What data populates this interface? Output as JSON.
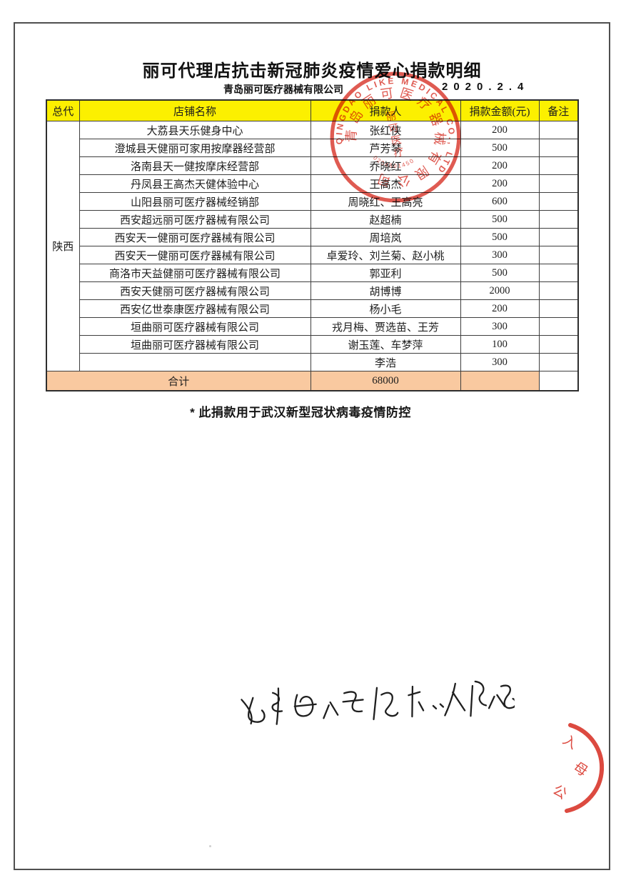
{
  "document": {
    "title": "丽可代理店抗击新冠肺炎疫情爱心捐款明细",
    "company": "青岛丽可医疗器械有限公司",
    "date": "2020.2.4",
    "footnote": "* 此捐款用于武汉新型冠状病毒疫情防控"
  },
  "table": {
    "columns": [
      "总代",
      "店铺名称",
      "捐款人",
      "捐款金额(元)",
      "备注"
    ],
    "region": "陕西",
    "rows": [
      {
        "store": "大荔县天乐健身中心",
        "donor": "张红侠",
        "amount": "200",
        "note": ""
      },
      {
        "store": "澄城县天健丽可家用按摩器经营部",
        "donor": "芦芳琴",
        "amount": "500",
        "note": ""
      },
      {
        "store": "洛南县天一健按摩床经营部",
        "donor": "乔晓红",
        "amount": "200",
        "note": ""
      },
      {
        "store": "丹凤县王高杰天健体验中心",
        "donor": "王高杰",
        "amount": "200",
        "note": ""
      },
      {
        "store": "山阳县丽可医疗器械经销部",
        "donor": "周晓红、王高亮",
        "amount": "600",
        "note": ""
      },
      {
        "store": "西安超远丽可医疗器械有限公司",
        "donor": "赵超楠",
        "amount": "500",
        "note": ""
      },
      {
        "store": "西安天一健丽可医疗器械有限公司",
        "donor": "周培岚",
        "amount": "500",
        "note": ""
      },
      {
        "store": "西安天一健丽可医疗器械有限公司",
        "donor": "卓爱玲、刘兰菊、赵小桃",
        "amount": "300",
        "note": ""
      },
      {
        "store": "商洛市天益健丽可医疗器械有限公司",
        "donor": "郭亚利",
        "amount": "500",
        "note": ""
      },
      {
        "store": "西安天健丽可医疗器械有限公司",
        "donor": "胡博博",
        "amount": "2000",
        "note": ""
      },
      {
        "store": "西安亿世泰康医疗器械有限公司",
        "donor": "杨小毛",
        "amount": "200",
        "note": ""
      },
      {
        "store": "垣曲丽可医疗器械有限公司",
        "donor": "戎月梅、贾选苗、王芳",
        "amount": "300",
        "note": ""
      },
      {
        "store": "垣曲丽可医疗器械有限公司",
        "donor": "谢玉莲、车梦萍",
        "amount": "100",
        "note": ""
      },
      {
        "store": "",
        "donor": "李浩",
        "amount": "300",
        "note": ""
      }
    ],
    "total_label": "合计",
    "total_amount": "68000",
    "total_note": ""
  },
  "seal": {
    "ring_text_en": "QINGDAO LIKE MEDICAL CO., LTD",
    "ring_text_cn": "青岛丽可医疗器械有限公司",
    "center_chars": [
      "丽",
      "可",
      "医",
      "疗"
    ],
    "serial": "0204801450"
  },
  "partial_seal": {
    "chars": [
      "入",
      "母",
      "公"
    ]
  },
  "handwriting": {
    "approx_text": "名单由公司提供 仅限公司"
  },
  "colors": {
    "header_bg": "#fcf000",
    "total_bg": "#f9c9a0",
    "table_border": "#3e3e3e",
    "seal_red": "#d8362b",
    "ink": "#1f1f1f"
  }
}
